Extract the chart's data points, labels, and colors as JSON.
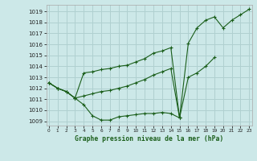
{
  "title": "Graphe pression niveau de la mer (hPa)",
  "bg_color": "#cce8e8",
  "grid_color": "#b0d0d0",
  "line_color": "#1a5e1a",
  "x_ticks": [
    0,
    1,
    2,
    3,
    4,
    5,
    6,
    7,
    8,
    9,
    10,
    11,
    12,
    13,
    14,
    15,
    16,
    17,
    18,
    19,
    20,
    21,
    22,
    23
  ],
  "y_ticks": [
    1009,
    1010,
    1011,
    1012,
    1013,
    1014,
    1015,
    1016,
    1017,
    1018,
    1019
  ],
  "ylim": [
    1008.6,
    1019.6
  ],
  "xlim": [
    -0.3,
    23.3
  ],
  "series": [
    [
      1012.5,
      1012.0,
      1011.7,
      1011.1,
      1010.5,
      1009.5,
      1009.1,
      1009.1,
      1009.4,
      1009.5,
      1009.6,
      1009.7,
      1009.7,
      1009.8,
      1009.7,
      1009.3,
      null,
      null,
      null,
      null,
      null,
      null,
      null,
      null
    ],
    [
      1012.5,
      1012.0,
      1011.7,
      1011.1,
      1011.3,
      1011.5,
      1011.7,
      1011.8,
      1012.0,
      1012.2,
      1012.5,
      1012.8,
      1013.2,
      1013.5,
      1013.8,
      1009.3,
      1013.0,
      1013.4,
      1014.0,
      1014.8,
      null,
      null,
      null,
      null
    ],
    [
      1012.5,
      1012.0,
      1011.7,
      1011.1,
      1013.4,
      1013.5,
      1013.7,
      1013.8,
      1014.0,
      1014.1,
      1014.4,
      1014.7,
      1015.2,
      1015.4,
      1015.7,
      1009.3,
      1016.1,
      1017.5,
      1018.2,
      1018.5,
      1017.5,
      1018.2,
      1018.7,
      1019.2
    ]
  ]
}
